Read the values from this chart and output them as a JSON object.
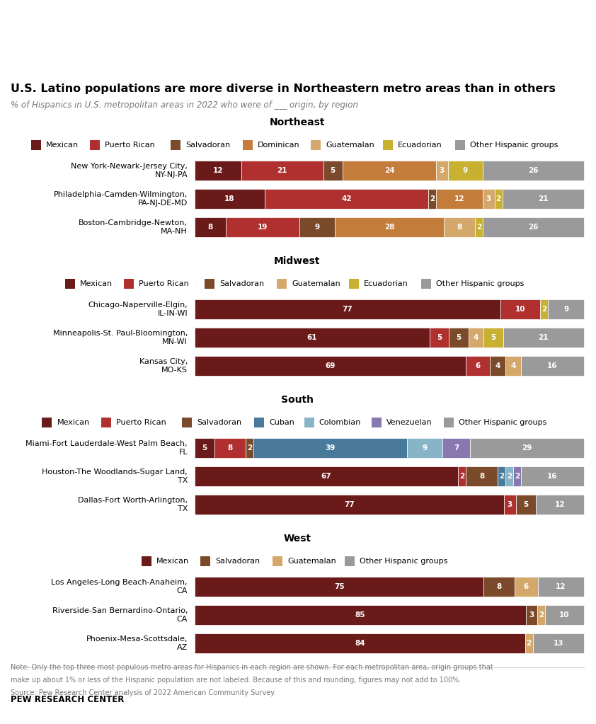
{
  "title": "U.S. Latino populations are more diverse in Northeastern metro areas than in others",
  "subtitle": "% of Hispanics in U.S. metropolitan areas in 2022 who were of ___ origin, by region",
  "note_line1": "Note: Only the top three most populous metro areas for Hispanics in each region are shown. For each metropolitan area, origin groups that",
  "note_line2": "make up about 1% or less of the Hispanic population are not labeled. Because of this and rounding, figures may not add to 100%.",
  "note_line3": "Source: Pew Research Center analysis of 2022 American Community Survey.",
  "source_label": "PEW RESEARCH CENTER",
  "colors_map": {
    "Mexican": "#6b1a1a",
    "Puerto Rican": "#b03030",
    "Salvadoran": "#7b4a2a",
    "Dominican": "#c47c3a",
    "Guatemalan": "#d4a86a",
    "Ecuadorian": "#c8b030",
    "Cuban": "#4a7a9b",
    "Colombian": "#88b4c8",
    "Venezuelan": "#8878b0",
    "Other Hispanic groups": "#9a9a9a"
  },
  "regions": [
    {
      "name": "Northeast",
      "legend": [
        "Mexican",
        "Puerto Rican",
        "Salvadoran",
        "Dominican",
        "Guatemalan",
        "Ecuadorian",
        "Other Hispanic groups"
      ],
      "cities": [
        {
          "name": "New York-Newark-Jersey City,\nNY-NJ-PA",
          "keys": [
            "Mexican",
            "Puerto Rican",
            "Salvadoran",
            "Dominican",
            "Guatemalan",
            "Ecuadorian",
            "Other Hispanic groups"
          ],
          "values": [
            12,
            21,
            5,
            24,
            3,
            9,
            26
          ]
        },
        {
          "name": "Philadelphia-Camden-Wilmington,\nPA-NJ-DE-MD",
          "keys": [
            "Mexican",
            "Puerto Rican",
            "Salvadoran",
            "Dominican",
            "Guatemalan",
            "Ecuadorian",
            "Other Hispanic groups"
          ],
          "values": [
            18,
            42,
            2,
            12,
            3,
            2,
            21
          ]
        },
        {
          "name": "Boston-Cambridge-Newton,\nMA-NH",
          "keys": [
            "Mexican",
            "Puerto Rican",
            "Salvadoran",
            "Dominican",
            "Guatemalan",
            "Ecuadorian",
            "Other Hispanic groups"
          ],
          "values": [
            8,
            19,
            9,
            28,
            8,
            2,
            26
          ]
        }
      ]
    },
    {
      "name": "Midwest",
      "legend": [
        "Mexican",
        "Puerto Rican",
        "Salvadoran",
        "Guatemalan",
        "Ecuadorian",
        "Other Hispanic groups"
      ],
      "cities": [
        {
          "name": "Chicago-Naperville-Elgin,\nIL-IN-WI",
          "keys": [
            "Mexican",
            "Puerto Rican",
            "Salvadoran",
            "Guatemalan",
            "Ecuadorian",
            "Other Hispanic groups"
          ],
          "values": [
            77,
            10,
            0,
            0,
            2,
            9
          ]
        },
        {
          "name": "Minneapolis-St. Paul-Bloomington,\nMN-WI",
          "keys": [
            "Mexican",
            "Puerto Rican",
            "Salvadoran",
            "Guatemalan",
            "Ecuadorian",
            "Other Hispanic groups"
          ],
          "values": [
            61,
            5,
            5,
            4,
            5,
            21
          ]
        },
        {
          "name": "Kansas City,\nMO-KS",
          "keys": [
            "Mexican",
            "Puerto Rican",
            "Salvadoran",
            "Guatemalan",
            "Ecuadorian",
            "Other Hispanic groups"
          ],
          "values": [
            69,
            6,
            4,
            4,
            0,
            16
          ]
        }
      ]
    },
    {
      "name": "South",
      "legend": [
        "Mexican",
        "Puerto Rican",
        "Salvadoran",
        "Cuban",
        "Colombian",
        "Venezuelan",
        "Other Hispanic groups"
      ],
      "cities": [
        {
          "name": "Miami-Fort Lauderdale-West Palm Beach,\nFL",
          "keys": [
            "Mexican",
            "Puerto Rican",
            "Salvadoran",
            "Cuban",
            "Colombian",
            "Venezuelan",
            "Other Hispanic groups"
          ],
          "values": [
            5,
            8,
            2,
            39,
            9,
            7,
            29
          ]
        },
        {
          "name": "Houston-The Woodlands-Sugar Land,\nTX",
          "keys": [
            "Mexican",
            "Puerto Rican",
            "Salvadoran",
            "Cuban",
            "Colombian",
            "Venezuelan",
            "Other Hispanic groups"
          ],
          "values": [
            67,
            2,
            8,
            2,
            2,
            2,
            16
          ]
        },
        {
          "name": "Dallas-Fort Worth-Arlington,\nTX",
          "keys": [
            "Mexican",
            "Puerto Rican",
            "Salvadoran",
            "Cuban",
            "Colombian",
            "Venezuelan",
            "Other Hispanic groups"
          ],
          "values": [
            77,
            3,
            5,
            0,
            0,
            0,
            12
          ]
        }
      ]
    },
    {
      "name": "West",
      "legend": [
        "Mexican",
        "Salvadoran",
        "Guatemalan",
        "Other Hispanic groups"
      ],
      "cities": [
        {
          "name": "Los Angeles-Long Beach-Anaheim,\nCA",
          "keys": [
            "Mexican",
            "Salvadoran",
            "Guatemalan",
            "Other Hispanic groups"
          ],
          "values": [
            75,
            8,
            6,
            12
          ]
        },
        {
          "name": "Riverside-San Bernardino-Ontario,\nCA",
          "keys": [
            "Mexican",
            "Salvadoran",
            "Guatemalan",
            "Other Hispanic groups"
          ],
          "values": [
            85,
            3,
            2,
            10
          ]
        },
        {
          "name": "Phoenix-Mesa-Scottsdale,\nAZ",
          "keys": [
            "Mexican",
            "Salvadoran",
            "Guatemalan",
            "Other Hispanic groups"
          ],
          "values": [
            84,
            0,
            2,
            13
          ]
        }
      ]
    }
  ]
}
